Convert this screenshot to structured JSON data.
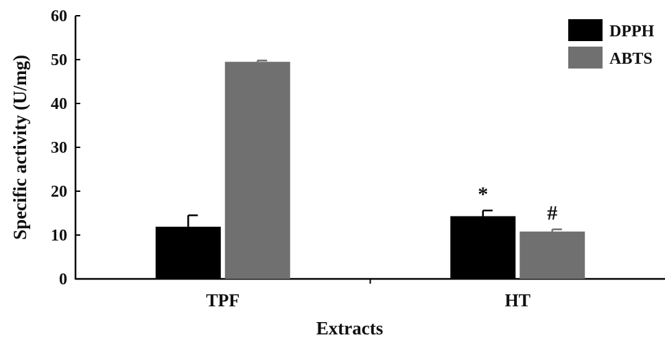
{
  "chart_data": {
    "type": "bar",
    "categories": [
      "TPF",
      "HT"
    ],
    "series": [
      {
        "name": "DPPH",
        "color": "#000000",
        "values": [
          11.9,
          14.3
        ],
        "errors": [
          2.6,
          1.3
        ]
      },
      {
        "name": "ABTS",
        "color": "#707070",
        "values": [
          49.5,
          10.8
        ],
        "errors": [
          0.3,
          0.5
        ]
      }
    ],
    "xlabel": "Extracts",
    "ylabel": "Specific activity (U/mg)",
    "ylim": [
      0,
      60
    ],
    "yticks": [
      0,
      10,
      20,
      30,
      40,
      50,
      60
    ],
    "legend_position": "top-right",
    "grid": false,
    "annotations": [
      {
        "text": "*",
        "category": "HT",
        "series": "DPPH"
      },
      {
        "text": "#",
        "category": "HT",
        "series": "ABTS"
      }
    ]
  }
}
